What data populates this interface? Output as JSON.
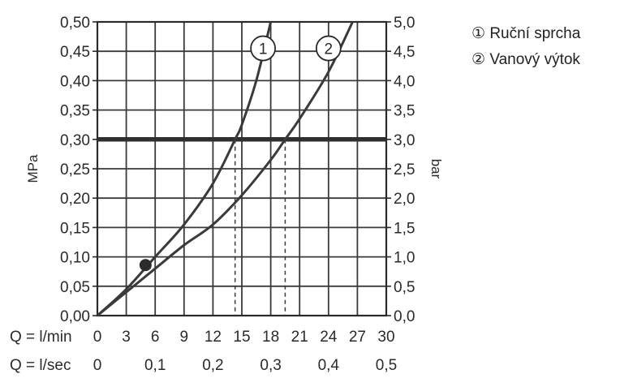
{
  "chart_data": {
    "type": "line",
    "title": "",
    "ylabel_left": "MPa",
    "ylabel_right": "bar",
    "x_label_lmin": "Q = l/min",
    "x_label_lsec": "Q = l/sec",
    "x_ticks_lmin": [
      "0",
      "3",
      "6",
      "9",
      "12",
      "15",
      "18",
      "21",
      "24",
      "27",
      "30"
    ],
    "x_ticks_lsec": [
      "0",
      "0,1",
      "0,2",
      "0,3",
      "0,4",
      "0,5"
    ],
    "y_ticks_mpa": [
      "0,00",
      "0,05",
      "0,10",
      "0,15",
      "0,20",
      "0,25",
      "0,30",
      "0,35",
      "0,40",
      "0,45",
      "0,50"
    ],
    "y_ticks_bar": [
      "0,0",
      "0,5",
      "1,0",
      "1,5",
      "2,0",
      "2,5",
      "3,0",
      "3,5",
      "4,0",
      "4,5",
      "5,0"
    ],
    "xlim": [
      0,
      30
    ],
    "ylim": [
      0,
      0.5
    ],
    "grid": true,
    "reference_line": {
      "y": 0.3,
      "label": ""
    },
    "series": [
      {
        "name": "Ruční sprcha",
        "marker_label": "1",
        "x": [
          0,
          3,
          6,
          9,
          12,
          14.3,
          15,
          16.5,
          18
        ],
        "y": [
          0,
          0.045,
          0.1,
          0.155,
          0.225,
          0.3,
          0.325,
          0.4,
          0.5
        ],
        "crossing_at_0_3": 14.3,
        "label_pos": [
          17.2,
          0.455
        ]
      },
      {
        "name": "Vanový výtok",
        "marker_label": "2",
        "x": [
          0,
          3,
          6,
          9,
          12,
          15,
          18,
          19.5,
          21,
          24,
          26.5
        ],
        "y": [
          0,
          0.04,
          0.08,
          0.12,
          0.155,
          0.205,
          0.265,
          0.3,
          0.335,
          0.415,
          0.5
        ],
        "crossing_at_0_3": 19.5,
        "label_pos": [
          24,
          0.455
        ]
      }
    ],
    "point": {
      "x": 5,
      "y": 0.086
    }
  },
  "legend": {
    "items": [
      {
        "symbol": "①",
        "label": "Ruční sprcha"
      },
      {
        "symbol": "②",
        "label": "Vanový výtok"
      }
    ]
  }
}
